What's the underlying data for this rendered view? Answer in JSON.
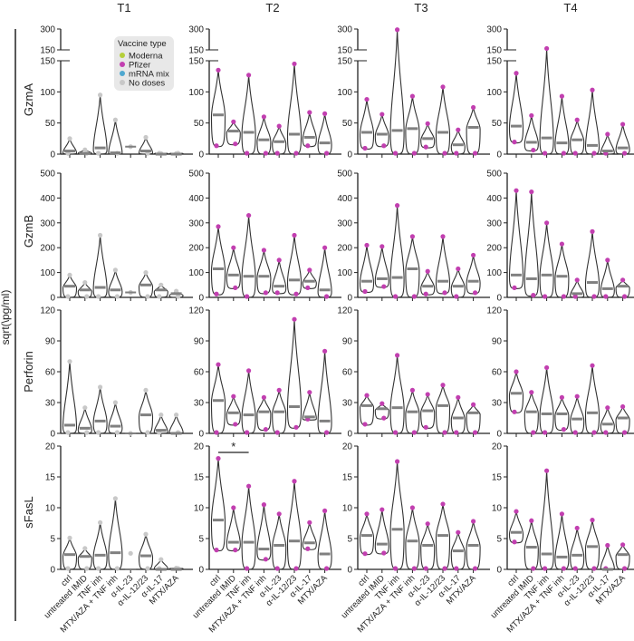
{
  "chart_data": {
    "type": "violin",
    "y_axis_label": "sqrt(\\pg/ml)",
    "columns": [
      "T1",
      "T2",
      "T3",
      "T4"
    ],
    "categories": [
      "ctrl",
      "untreated IMID",
      "TNF inh",
      "MTX/AZA + TNF inh",
      "α-IL-23",
      "α-IL-12/23",
      "α-IL-17",
      "MTX/AZA"
    ],
    "legend": {
      "title": "Vaccine type",
      "position": "top-right of T1 GzmA panel",
      "items": [
        {
          "label": "Moderna",
          "color": "#b5cf3a"
        },
        {
          "label": "Pfizer",
          "color": "#c23fb0"
        },
        {
          "label": "mRNA mix",
          "color": "#4fa8d0"
        },
        {
          "label": "No doses",
          "color": "#c8c8c8"
        }
      ]
    },
    "median_color": "#808080",
    "rows": [
      {
        "label": "GzmA",
        "ylim": [
          0,
          300
        ],
        "axis_break": [
          150,
          150
        ],
        "ticks_lower": [
          0,
          50,
          100,
          150
        ],
        "ticks_upper": [
          150,
          300
        ],
        "panels": [
          {
            "column": "T1",
            "point_color": "#c8c8c8",
            "stats_min_median_max": [
              [
                0,
                5,
                25
              ],
              [
                0,
                1,
                7
              ],
              [
                0,
                10,
                95
              ],
              [
                0,
                2,
                55
              ],
              [
                12,
                12,
                12
              ],
              [
                0,
                5,
                27
              ],
              [
                0,
                0,
                1
              ],
              [
                0,
                0,
                1
              ]
            ]
          },
          {
            "column": "T2",
            "point_color": "#c23fb0",
            "stats_min_median_max": [
              [
                12,
                63,
                135
              ],
              [
                15,
                37,
                52
              ],
              [
                0,
                35,
                127
              ],
              [
                0,
                23,
                60
              ],
              [
                0,
                20,
                45
              ],
              [
                0,
                32,
                145
              ],
              [
                12,
                27,
                67
              ],
              [
                0,
                18,
                65
              ]
            ]
          },
          {
            "column": "T3",
            "point_color": "#c23fb0",
            "stats_min_median_max": [
              [
                8,
                35,
                88
              ],
              [
                12,
                32,
                64
              ],
              [
                0,
                38,
                295
              ],
              [
                0,
                41,
                93
              ],
              [
                10,
                25,
                49
              ],
              [
                0,
                35,
                108
              ],
              [
                0,
                15,
                39
              ],
              [
                0,
                43,
                75
              ]
            ]
          },
          {
            "column": "T4",
            "point_color": "#c23fb0",
            "stats_min_median_max": [
              [
                18,
                45,
                130
              ],
              [
                5,
                19,
                62
              ],
              [
                0,
                26,
                160
              ],
              [
                0,
                18,
                93
              ],
              [
                0,
                23,
                55
              ],
              [
                0,
                14,
                103
              ],
              [
                0,
                5,
                32
              ],
              [
                0,
                10,
                48
              ]
            ]
          }
        ]
      },
      {
        "label": "GzmB",
        "ylim": [
          0,
          500
        ],
        "ticks": [
          0,
          100,
          200,
          300,
          400,
          500
        ],
        "panels": [
          {
            "column": "T1",
            "point_color": "#c8c8c8",
            "stats_min_median_max": [
              [
                0,
                45,
                90
              ],
              [
                0,
                30,
                60
              ],
              [
                0,
                40,
                250
              ],
              [
                0,
                30,
                110
              ],
              [
                20,
                20,
                20
              ],
              [
                0,
                50,
                100
              ],
              [
                0,
                30,
                50
              ],
              [
                0,
                15,
                25
              ]
            ]
          },
          {
            "column": "T2",
            "point_color": "#c23fb0",
            "stats_min_median_max": [
              [
                10,
                115,
                285
              ],
              [
                35,
                90,
                200
              ],
              [
                0,
                85,
                330
              ],
              [
                15,
                85,
                190
              ],
              [
                15,
                45,
                150
              ],
              [
                10,
                70,
                250
              ],
              [
                35,
                65,
                110
              ],
              [
                0,
                30,
                200
              ]
            ]
          },
          {
            "column": "T3",
            "point_color": "#c23fb0",
            "stats_min_median_max": [
              [
                20,
                65,
                210
              ],
              [
                40,
                75,
                205
              ],
              [
                0,
                80,
                370
              ],
              [
                0,
                115,
                245
              ],
              [
                10,
                45,
                105
              ],
              [
                15,
                65,
                245
              ],
              [
                0,
                45,
                115
              ],
              [
                15,
                65,
                170
              ]
            ]
          },
          {
            "column": "T4",
            "point_color": "#c23fb0",
            "stats_min_median_max": [
              [
                35,
                90,
                430
              ],
              [
                5,
                75,
                425
              ],
              [
                0,
                90,
                300
              ],
              [
                0,
                85,
                215
              ],
              [
                0,
                15,
                70
              ],
              [
                0,
                60,
                265
              ],
              [
                0,
                35,
                150
              ],
              [
                0,
                45,
                70
              ]
            ]
          }
        ]
      },
      {
        "label": "Perforin",
        "ylim": [
          0,
          120
        ],
        "ticks": [
          0,
          30,
          60,
          90,
          120
        ],
        "panels": [
          {
            "column": "T1",
            "point_color": "#c8c8c8",
            "stats_min_median_max": [
              [
                0,
                8,
                70
              ],
              [
                0,
                5,
                25
              ],
              [
                0,
                12,
                45
              ],
              [
                0,
                7,
                30
              ],
              [
                0,
                0,
                0
              ],
              [
                0,
                18,
                42
              ],
              [
                0,
                3,
                18
              ],
              [
                0,
                0,
                18
              ]
            ]
          },
          {
            "column": "T2",
            "point_color": "#c23fb0",
            "stats_min_median_max": [
              [
                0,
                32,
                67
              ],
              [
                8,
                20,
                36
              ],
              [
                0,
                18,
                61
              ],
              [
                3,
                21,
                35
              ],
              [
                0,
                21,
                42
              ],
              [
                5,
                26,
                111
              ],
              [
                13,
                16,
                40
              ],
              [
                0,
                12,
                80
              ]
            ]
          },
          {
            "column": "T3",
            "point_color": "#c23fb0",
            "stats_min_median_max": [
              [
                8,
                27,
                37
              ],
              [
                14,
                24,
                29
              ],
              [
                0,
                25,
                76
              ],
              [
                0,
                21,
                42
              ],
              [
                5,
                22,
                38
              ],
              [
                0,
                27,
                47
              ],
              [
                0,
                15,
                35
              ],
              [
                0,
                20,
                28
              ]
            ]
          },
          {
            "column": "T4",
            "point_color": "#c23fb0",
            "stats_min_median_max": [
              [
                20,
                39,
                60
              ],
              [
                0,
                21,
                40
              ],
              [
                0,
                19,
                64
              ],
              [
                3,
                19,
                35
              ],
              [
                0,
                14,
                36
              ],
              [
                0,
                20,
                66
              ],
              [
                0,
                9,
                25
              ],
              [
                0,
                15,
                26
              ]
            ]
          }
        ]
      },
      {
        "label": "sFasL",
        "ylim": [
          0,
          20
        ],
        "ticks": [
          0,
          5,
          10,
          15,
          20
        ],
        "panels": [
          {
            "column": "T1",
            "point_color": "#c8c8c8",
            "stats_min_median_max": [
              [
                0,
                2.4,
                5.1
              ],
              [
                0,
                2.1,
                3.4
              ],
              [
                0,
                2.3,
                7.6
              ],
              [
                0,
                2.7,
                11.5
              ],
              [
                0,
                0,
                2.6
              ],
              [
                0,
                2.2,
                5.7
              ],
              [
                0,
                0,
                1.6
              ],
              [
                0,
                0,
                0.2
              ]
            ]
          },
          {
            "column": "T2",
            "point_color": "#c23fb0",
            "stats_min_median_max": [
              [
                3,
                8,
                18
              ],
              [
                3,
                4.4,
                10
              ],
              [
                0,
                4.4,
                13.5
              ],
              [
                1.5,
                3.3,
                10.5
              ],
              [
                0,
                3.9,
                9
              ],
              [
                0,
                4.6,
                14.3
              ],
              [
                3.2,
                4.3,
                7.6
              ],
              [
                0,
                2.5,
                9.5
              ]
            ]
          },
          {
            "column": "T3",
            "point_color": "#c23fb0",
            "stats_min_median_max": [
              [
                2.4,
                5.5,
                9
              ],
              [
                2.5,
                4.1,
                9.7
              ],
              [
                0,
                6.5,
                17.5
              ],
              [
                0,
                4.6,
                10
              ],
              [
                0,
                3.9,
                7.4
              ],
              [
                0,
                5.5,
                10.6
              ],
              [
                0,
                3,
                6
              ],
              [
                0,
                3.9,
                7.8
              ]
            ]
          },
          {
            "column": "T4",
            "point_color": "#c23fb0",
            "stats_min_median_max": [
              [
                4.3,
                6,
                9.4
              ],
              [
                0,
                3.6,
                7.9
              ],
              [
                0,
                2.5,
                16
              ],
              [
                0,
                2,
                9
              ],
              [
                0,
                2.3,
                6.7
              ],
              [
                0,
                3.7,
                8
              ],
              [
                0,
                0,
                3.9
              ],
              [
                0,
                2.4,
                4
              ]
            ]
          }
        ]
      }
    ],
    "annotations": [
      {
        "row": "sFasL",
        "column": "T2",
        "from": "ctrl",
        "to": "TNF inh",
        "text": "*"
      }
    ]
  }
}
